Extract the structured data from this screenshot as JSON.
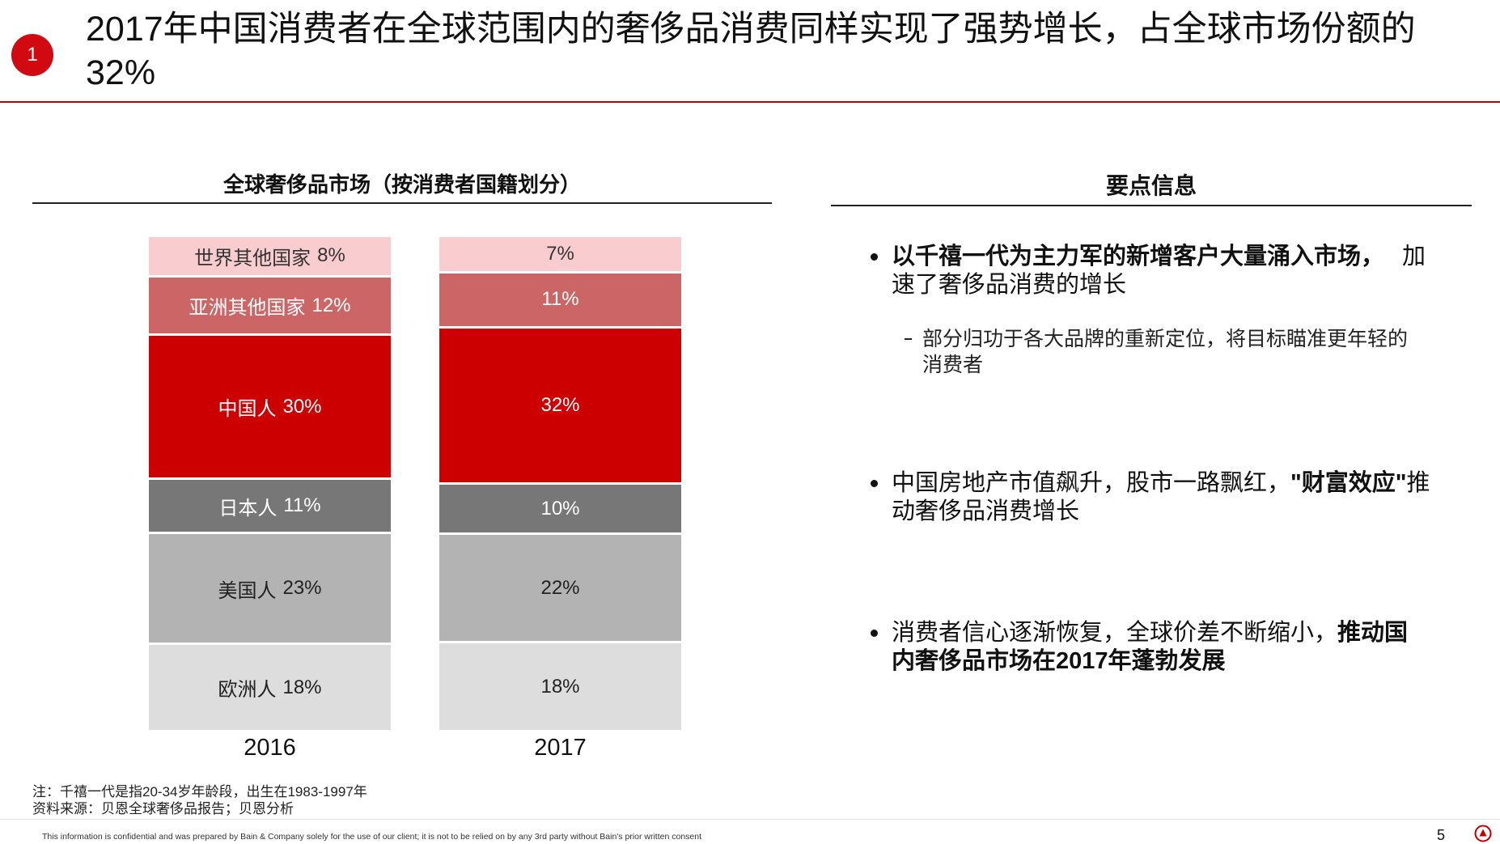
{
  "header": {
    "section_number": "1",
    "title": "2017年中国消费者在全球范围内的奢侈品消费同样实现了强势增长，占全球市场份额的32%"
  },
  "chart_data": {
    "type": "bar",
    "stacked": true,
    "title": "全球奢侈品市场（按消费者国籍划分）",
    "categories": [
      "2016",
      "2017"
    ],
    "unit": "%",
    "series": [
      {
        "name": "世界其他国家",
        "values": [
          8,
          7
        ],
        "color": "#f9cdd0",
        "label_color": "#333333"
      },
      {
        "name": "亚洲其他国家",
        "values": [
          12,
          11
        ],
        "color": "#cc6666",
        "label_color": "#ffffff"
      },
      {
        "name": "中国人",
        "values": [
          30,
          32
        ],
        "color": "#cc0000",
        "label_color": "#ffffff"
      },
      {
        "name": "日本人",
        "values": [
          11,
          10
        ],
        "color": "#777777",
        "label_color": "#ffffff"
      },
      {
        "name": "美国人",
        "values": [
          23,
          22
        ],
        "color": "#b3b3b3",
        "label_color": "#222222"
      },
      {
        "name": "欧洲人",
        "values": [
          18,
          18
        ],
        "color": "#dddddd",
        "label_color": "#222222"
      }
    ]
  },
  "key_points": {
    "title": "要点信息",
    "items": [
      {
        "lines": [
          [
            "以千禧一代为主力军的新增客户大量涌入市场，",
            "加"
          ],
          [
            "速了奢侈品消费的增长"
          ]
        ],
        "sub_lines": [
          "部分归功于各大品牌的重新定位，将目标瞄准更年轻的",
          "消费者"
        ]
      },
      {
        "lines": [
          [
            "中国房地产市值飙升，股市一路飘红，",
            "\"财富效应\"",
            "推"
          ],
          [
            "动奢侈品消费增长"
          ]
        ]
      },
      {
        "lines": [
          [
            "消费者信心逐渐恢复，全球价差不断缩小，",
            "推动国"
          ],
          [
            "内奢侈品市场在2017年蓬勃发展"
          ]
        ]
      }
    ]
  },
  "notes": {
    "note": "注：千禧一代是指20-34岁年龄段，出生在1983-1997年",
    "source": "资料来源：贝恩全球奢侈品报告；贝恩分析"
  },
  "footer": {
    "disclaimer": "This information is confidential and was prepared by Bain & Company solely for the use of our client; it is not to be relied on by any 3rd party without Bain's prior written consent",
    "page_number": "5",
    "logo_icon": "bain-logo-icon",
    "accent_color": "#c00000"
  }
}
